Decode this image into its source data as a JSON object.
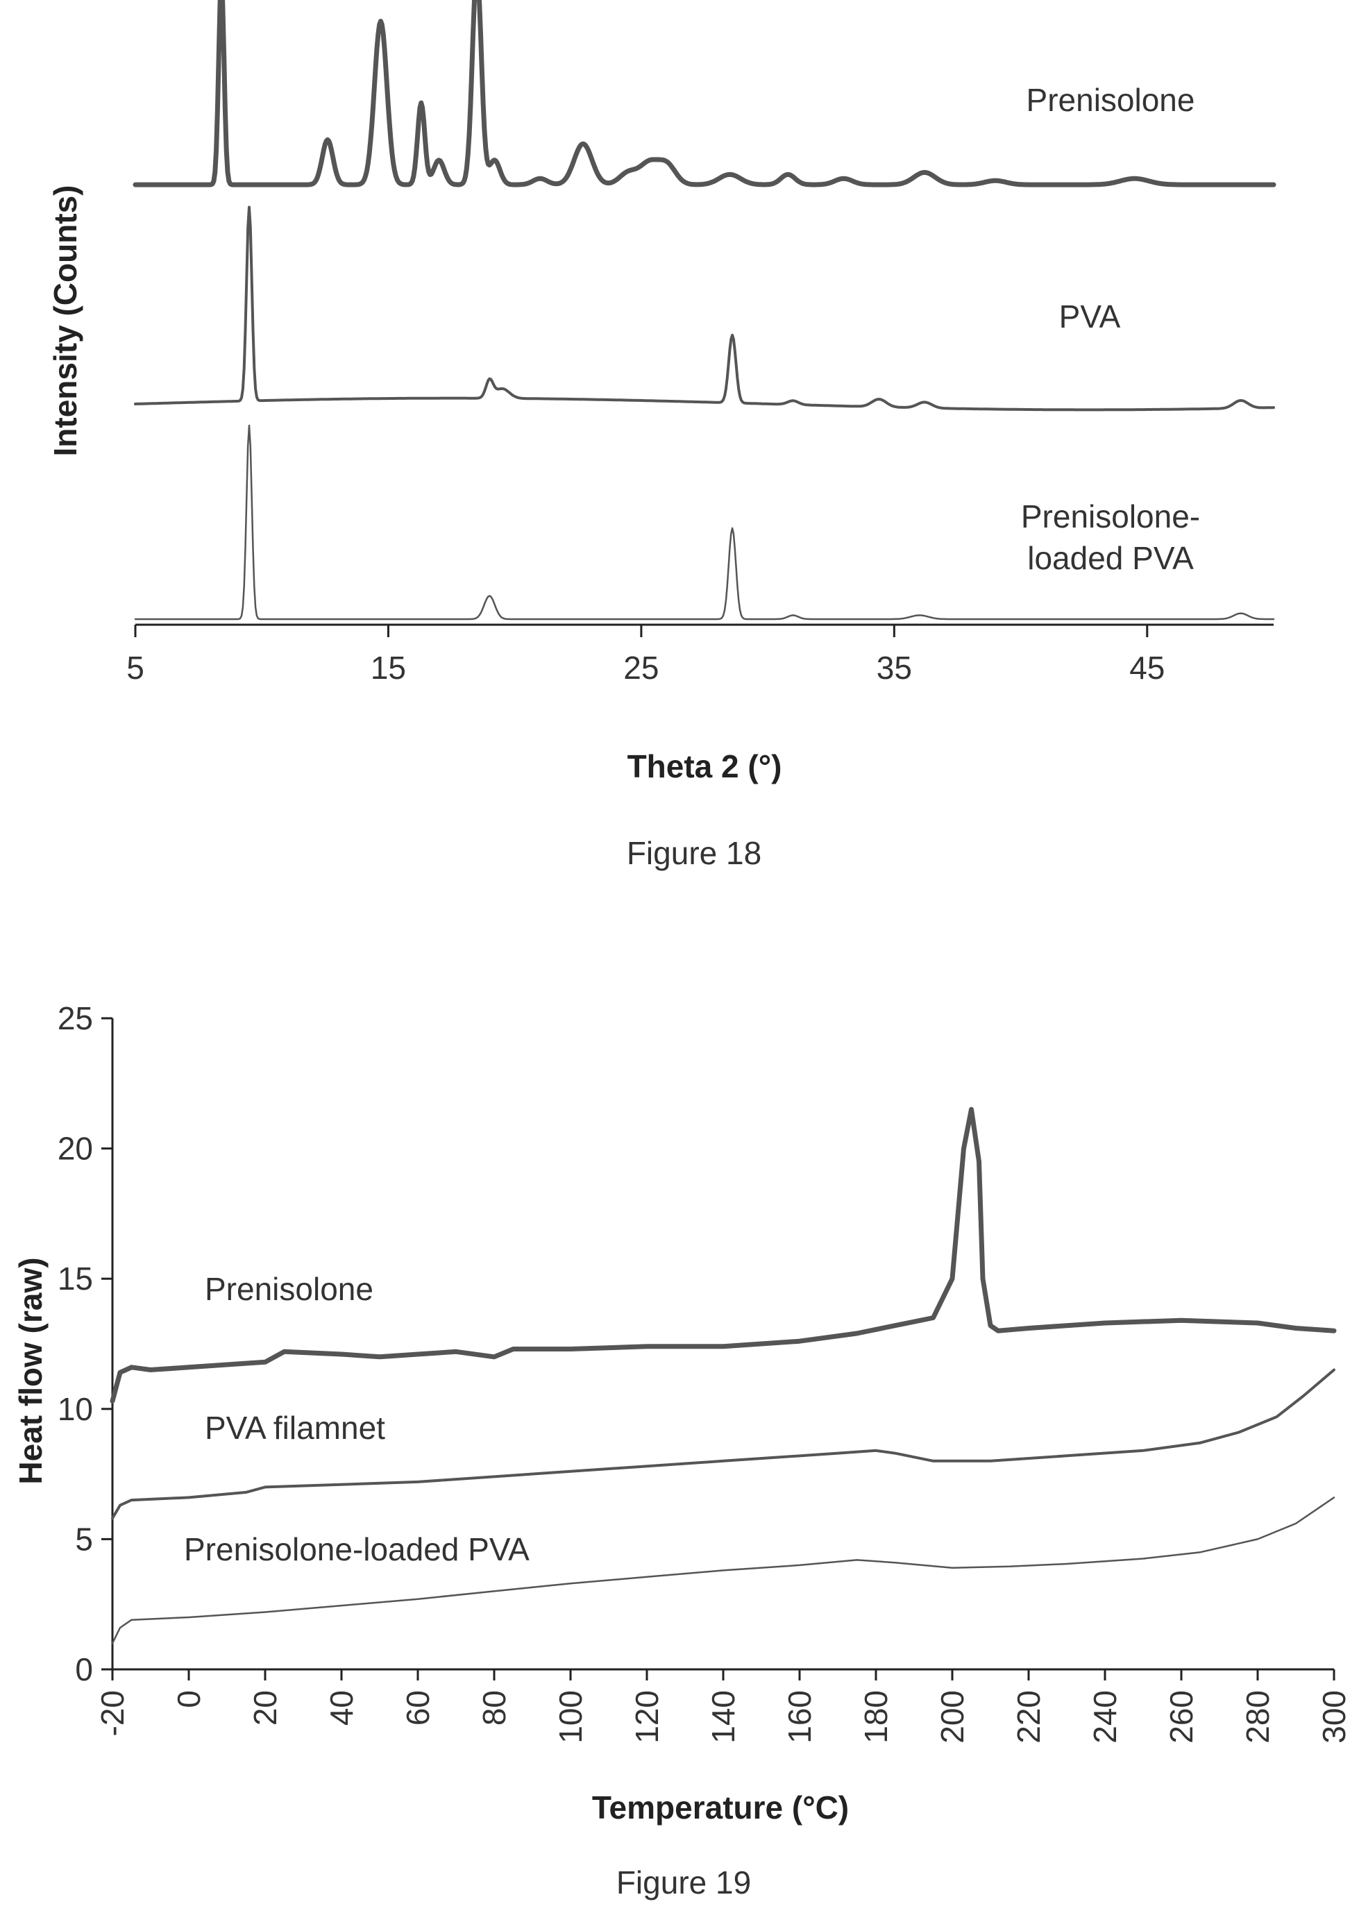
{
  "chart_data": [
    {
      "type": "line",
      "caption": "Figure 18",
      "xlabel": "Theta 2 (°)",
      "ylabel": "Intensity (Counts)",
      "xlim": [
        5,
        50
      ],
      "xticks": [
        5,
        15,
        25,
        35,
        45
      ],
      "y_tick_labels": false,
      "series": [
        {
          "name": "Prenisolone",
          "label_lines": [
            "Prenisolone"
          ],
          "offset": 2.0,
          "scale": 0.95,
          "baseline": 0.02,
          "drift": 0.0,
          "color": "#555555",
          "width": 7,
          "peaks": [
            [
              8.4,
              1.0,
              0.15
            ],
            [
              12.6,
              0.22,
              0.3
            ],
            [
              14.7,
              0.8,
              0.35
            ],
            [
              16.3,
              0.4,
              0.2
            ],
            [
              17.0,
              0.12,
              0.3
            ],
            [
              18.5,
              1.05,
              0.25
            ],
            [
              19.2,
              0.12,
              0.3
            ],
            [
              21.0,
              0.03,
              0.4
            ],
            [
              22.7,
              0.2,
              0.5
            ],
            [
              24.5,
              0.06,
              0.5
            ],
            [
              25.3,
              0.1,
              0.5
            ],
            [
              26.0,
              0.1,
              0.5
            ],
            [
              28.5,
              0.05,
              0.6
            ],
            [
              30.8,
              0.05,
              0.4
            ],
            [
              33.0,
              0.03,
              0.5
            ],
            [
              36.2,
              0.06,
              0.6
            ],
            [
              39.0,
              0.02,
              0.6
            ],
            [
              44.5,
              0.03,
              0.8
            ]
          ]
        },
        {
          "name": "PVA",
          "label_lines": [
            "PVA"
          ],
          "offset": 1.0,
          "scale": 0.9,
          "baseline": 0.0,
          "drift": 0.03,
          "color": "#555555",
          "width": 4,
          "peaks": [
            [
              9.5,
              1.0,
              0.15
            ],
            [
              19.0,
              0.09,
              0.2
            ],
            [
              19.5,
              0.05,
              0.4
            ],
            [
              28.6,
              0.35,
              0.2
            ],
            [
              31.0,
              0.02,
              0.3
            ],
            [
              34.4,
              0.04,
              0.4
            ],
            [
              36.2,
              0.03,
              0.4
            ],
            [
              48.7,
              0.04,
              0.4
            ]
          ]
        },
        {
          "name": "Prenisolone-loaded PVA",
          "label_lines": [
            "Prenisolone-",
            "loaded PVA"
          ],
          "offset": 0.0,
          "scale": 0.9,
          "baseline": 0.0,
          "drift": 0.0,
          "color": "#555555",
          "width": 2.5,
          "peaks": [
            [
              9.5,
              1.0,
              0.15
            ],
            [
              19.0,
              0.12,
              0.3
            ],
            [
              28.6,
              0.47,
              0.2
            ],
            [
              31.0,
              0.02,
              0.3
            ],
            [
              36.0,
              0.02,
              0.5
            ],
            [
              48.7,
              0.03,
              0.4
            ]
          ]
        }
      ]
    },
    {
      "type": "line",
      "caption": "Figure 19",
      "xlabel": "Temperature (°C)",
      "ylabel": "Heat flow (raw)",
      "xlim": [
        -20,
        300
      ],
      "ylim": [
        0,
        25
      ],
      "xticks": [
        -20,
        0,
        20,
        40,
        60,
        80,
        100,
        120,
        140,
        160,
        180,
        200,
        220,
        240,
        260,
        280,
        300
      ],
      "yticks": [
        0,
        5,
        10,
        15,
        20,
        25
      ],
      "series": [
        {
          "name": "Prenisolone",
          "label_lines": [
            "Prenisolone"
          ],
          "color": "#555555",
          "width": 7,
          "points": [
            [
              -20,
              10.3
            ],
            [
              -18,
              11.4
            ],
            [
              -15,
              11.6
            ],
            [
              -10,
              11.5
            ],
            [
              0,
              11.6
            ],
            [
              10,
              11.7
            ],
            [
              20,
              11.8
            ],
            [
              25,
              12.2
            ],
            [
              40,
              12.1
            ],
            [
              50,
              12.0
            ],
            [
              60,
              12.1
            ],
            [
              70,
              12.2
            ],
            [
              80,
              12.0
            ],
            [
              85,
              12.3
            ],
            [
              100,
              12.3
            ],
            [
              120,
              12.4
            ],
            [
              140,
              12.4
            ],
            [
              160,
              12.6
            ],
            [
              175,
              12.9
            ],
            [
              185,
              13.2
            ],
            [
              195,
              13.5
            ],
            [
              200,
              15.0
            ],
            [
              203,
              20.0
            ],
            [
              205,
              21.5
            ],
            [
              207,
              19.5
            ],
            [
              208,
              15.0
            ],
            [
              210,
              13.2
            ],
            [
              212,
              13.0
            ],
            [
              220,
              13.1
            ],
            [
              240,
              13.3
            ],
            [
              260,
              13.4
            ],
            [
              280,
              13.3
            ],
            [
              290,
              13.1
            ],
            [
              300,
              13.0
            ]
          ]
        },
        {
          "name": "PVA filamnet",
          "label_lines": [
            "PVA filamnet"
          ],
          "color": "#555555",
          "width": 4,
          "points": [
            [
              -20,
              5.8
            ],
            [
              -18,
              6.3
            ],
            [
              -15,
              6.5
            ],
            [
              0,
              6.6
            ],
            [
              15,
              6.8
            ],
            [
              20,
              7.0
            ],
            [
              60,
              7.2
            ],
            [
              100,
              7.6
            ],
            [
              140,
              8.0
            ],
            [
              170,
              8.3
            ],
            [
              180,
              8.4
            ],
            [
              185,
              8.3
            ],
            [
              195,
              8.0
            ],
            [
              210,
              8.0
            ],
            [
              230,
              8.2
            ],
            [
              250,
              8.4
            ],
            [
              265,
              8.7
            ],
            [
              275,
              9.1
            ],
            [
              285,
              9.7
            ],
            [
              292,
              10.5
            ],
            [
              300,
              11.5
            ]
          ]
        },
        {
          "name": "Prenisolone-loaded PVA",
          "label_lines": [
            "Prenisolone-loaded PVA"
          ],
          "color": "#555555",
          "width": 2.5,
          "points": [
            [
              -20,
              1.0
            ],
            [
              -18,
              1.6
            ],
            [
              -15,
              1.9
            ],
            [
              0,
              2.0
            ],
            [
              20,
              2.2
            ],
            [
              40,
              2.45
            ],
            [
              60,
              2.7
            ],
            [
              80,
              3.0
            ],
            [
              100,
              3.3
            ],
            [
              120,
              3.55
            ],
            [
              140,
              3.8
            ],
            [
              160,
              4.0
            ],
            [
              175,
              4.2
            ],
            [
              185,
              4.1
            ],
            [
              200,
              3.9
            ],
            [
              215,
              3.95
            ],
            [
              230,
              4.05
            ],
            [
              250,
              4.25
            ],
            [
              265,
              4.5
            ],
            [
              280,
              5.0
            ],
            [
              290,
              5.6
            ],
            [
              300,
              6.6
            ]
          ]
        }
      ]
    }
  ]
}
